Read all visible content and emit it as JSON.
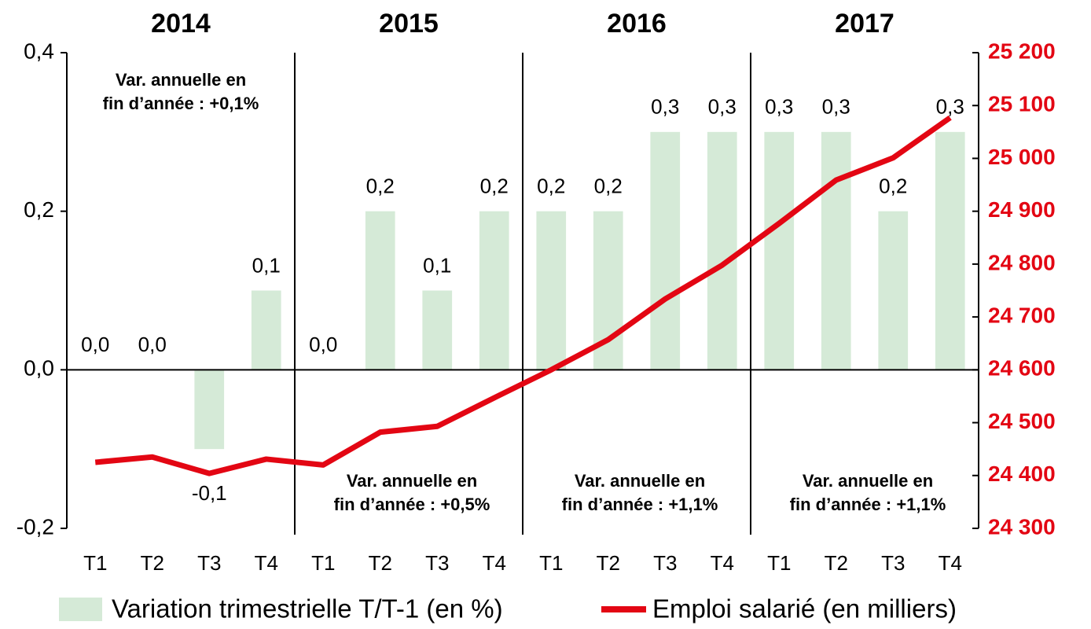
{
  "chart_data": {
    "type": "bar_line",
    "groups": [
      "2014",
      "2015",
      "2016",
      "2017"
    ],
    "categories": [
      "T1",
      "T2",
      "T3",
      "T4",
      "T1",
      "T2",
      "T3",
      "T4",
      "T1",
      "T2",
      "T3",
      "T4",
      "T1",
      "T2",
      "T3",
      "T4"
    ],
    "series": [
      {
        "name": "Variation trimestrielle T/T-1 (en %)",
        "type": "bar",
        "color": "#d5ead7",
        "values": [
          0.0,
          0.0,
          -0.1,
          0.1,
          0.0,
          0.2,
          0.1,
          0.2,
          0.2,
          0.2,
          0.3,
          0.3,
          0.3,
          0.3,
          0.2,
          0.3
        ],
        "value_labels": [
          "0,0",
          "0,0",
          "-0,1",
          "0,1",
          "0,0",
          "0,2",
          "0,1",
          "0,2",
          "0,2",
          "0,2",
          "0,3",
          "0,3",
          "0,3",
          "0,3",
          "0,2",
          "0,3"
        ]
      },
      {
        "name": "Emploi salarié (en milliers)",
        "type": "line",
        "color": "#e30613",
        "axis": "y2",
        "values": [
          24425,
          24435,
          24404,
          24431,
          24420,
          24482,
          24493,
          24547,
          24600,
          24657,
          24734,
          24798,
          24877,
          24959,
          25001,
          25077
        ]
      }
    ],
    "ylim": [
      -0.2,
      0.4
    ],
    "yticks": [
      {
        "value": 0.4,
        "label": "0,4"
      },
      {
        "value": 0.2,
        "label": "0,2"
      },
      {
        "value": 0.0,
        "label": "0,0"
      },
      {
        "value": -0.2,
        "label": "-0,2"
      }
    ],
    "y2lim": [
      24300,
      25200
    ],
    "y2ticks": [
      {
        "value": 25200,
        "label": "25 200"
      },
      {
        "value": 25100,
        "label": "25 100"
      },
      {
        "value": 25000,
        "label": "25 000"
      },
      {
        "value": 24900,
        "label": "24 900"
      },
      {
        "value": 24800,
        "label": "24 800"
      },
      {
        "value": 24700,
        "label": "24 700"
      },
      {
        "value": 24600,
        "label": "24 600"
      },
      {
        "value": 24500,
        "label": "24 500"
      },
      {
        "value": 24400,
        "label": "24 400"
      },
      {
        "value": 24300,
        "label": "24 300"
      }
    ],
    "y2color": "#e30613",
    "annotations": [
      {
        "lines": [
          "Var. annuelle en",
          "fin d’année : +0,1%"
        ],
        "position": "top"
      },
      {
        "lines": [
          "Var. annuelle en",
          "fin d’année : +0,5%"
        ],
        "position": "bottom"
      },
      {
        "lines": [
          "Var. annuelle en",
          "fin d’année : +1,1%"
        ],
        "position": "bottom"
      },
      {
        "lines": [
          "Var. annuelle en",
          "fin d’année : +1,1%"
        ],
        "position": "bottom"
      }
    ]
  }
}
